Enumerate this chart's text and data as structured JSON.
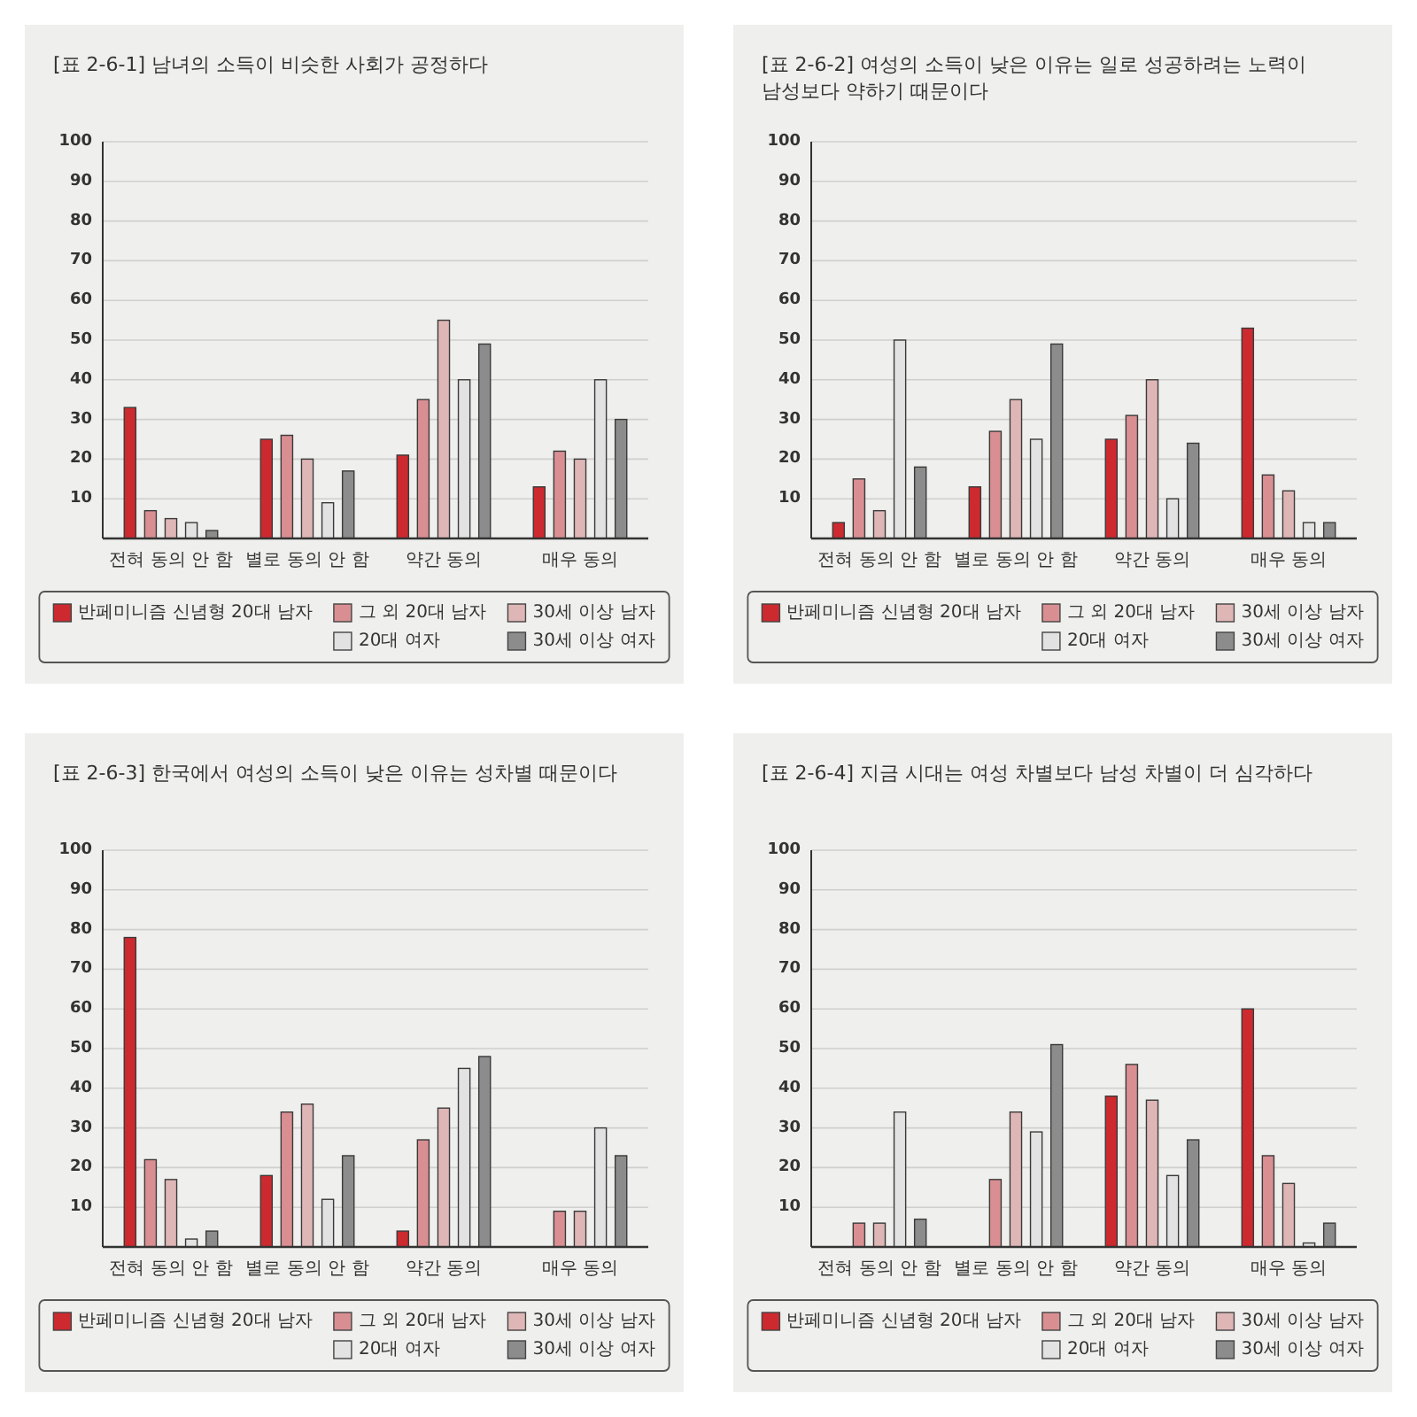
{
  "chart_data": [
    {
      "type": "bar",
      "title": "[표 2-6-1] 남녀의 소득이 비슷한 사회가 공정하다",
      "categories": [
        "전혀 동의 안 함",
        "별로 동의 안 함",
        "약간 동의",
        "매우 동의"
      ],
      "series": [
        {
          "name": "반페미니즘 신념형 20대 남자",
          "color": "#cc2a2f",
          "values": [
            33,
            25,
            21,
            13
          ]
        },
        {
          "name": "그 외 20대 남자",
          "color": "#d98f92",
          "values": [
            7,
            26,
            35,
            22
          ]
        },
        {
          "name": "30세 이상 남자",
          "color": "#dfb6b6",
          "values": [
            5,
            20,
            55,
            20
          ]
        },
        {
          "name": "20대 여자",
          "color": "#e2e2e2",
          "values": [
            4,
            9,
            40,
            40
          ]
        },
        {
          "name": "30세 이상 여자",
          "color": "#8c8c8c",
          "values": [
            2,
            17,
            49,
            30
          ]
        }
      ],
      "ylim": [
        0,
        100
      ],
      "yticks": [
        10,
        20,
        30,
        40,
        50,
        60,
        70,
        80,
        90,
        100
      ],
      "grid": "y",
      "legend": "bottom"
    },
    {
      "type": "bar",
      "title": "[표 2-6-2] 여성의 소득이 낮은 이유는 일로 성공하려는 노력이 남성보다 약하기 때문이다",
      "categories": [
        "전혀 동의 안 함",
        "별로 동의 안 함",
        "약간 동의",
        "매우 동의"
      ],
      "series": [
        {
          "name": "반페미니즘 신념형 20대 남자",
          "color": "#cc2a2f",
          "values": [
            4,
            13,
            25,
            53
          ]
        },
        {
          "name": "그 외 20대 남자",
          "color": "#d98f92",
          "values": [
            15,
            27,
            31,
            16
          ]
        },
        {
          "name": "30세 이상 남자",
          "color": "#dfb6b6",
          "values": [
            7,
            35,
            40,
            12
          ]
        },
        {
          "name": "20대 여자",
          "color": "#e2e2e2",
          "values": [
            50,
            25,
            10,
            4
          ]
        },
        {
          "name": "30세 이상 여자",
          "color": "#8c8c8c",
          "values": [
            18,
            49,
            24,
            4
          ]
        }
      ],
      "ylim": [
        0,
        100
      ],
      "yticks": [
        10,
        20,
        30,
        40,
        50,
        60,
        70,
        80,
        90,
        100
      ],
      "grid": "y",
      "legend": "bottom"
    },
    {
      "type": "bar",
      "title": "[표 2-6-3] 한국에서 여성의 소득이 낮은 이유는 성차별 때문이다",
      "categories": [
        "전혀 동의 안 함",
        "별로 동의 안 함",
        "약간 동의",
        "매우 동의"
      ],
      "series": [
        {
          "name": "반페미니즘 신념형 20대 남자",
          "color": "#cc2a2f",
          "values": [
            78,
            18,
            4,
            null
          ]
        },
        {
          "name": "그 외 20대 남자",
          "color": "#d98f92",
          "values": [
            22,
            34,
            27,
            9
          ]
        },
        {
          "name": "30세 이상 남자",
          "color": "#dfb6b6",
          "values": [
            17,
            36,
            35,
            9
          ]
        },
        {
          "name": "20대 여자",
          "color": "#e2e2e2",
          "values": [
            2,
            12,
            45,
            30
          ]
        },
        {
          "name": "30세 이상 여자",
          "color": "#8c8c8c",
          "values": [
            4,
            23,
            48,
            23
          ]
        }
      ],
      "ylim": [
        0,
        100
      ],
      "yticks": [
        10,
        20,
        30,
        40,
        50,
        60,
        70,
        80,
        90,
        100
      ],
      "grid": "y",
      "legend": "bottom"
    },
    {
      "type": "bar",
      "title": "[표 2-6-4] 지금 시대는 여성 차별보다 남성 차별이 더 심각하다",
      "categories": [
        "전혀 동의 안 함",
        "별로 동의 안 함",
        "약간 동의",
        "매우 동의"
      ],
      "series": [
        {
          "name": "반페미니즘 신념형 20대 남자",
          "color": "#cc2a2f",
          "values": [
            null,
            null,
            38,
            60
          ]
        },
        {
          "name": "그 외 20대 남자",
          "color": "#d98f92",
          "values": [
            6,
            17,
            46,
            23
          ]
        },
        {
          "name": "30세 이상 남자",
          "color": "#dfb6b6",
          "values": [
            6,
            34,
            37,
            16
          ]
        },
        {
          "name": "20대 여자",
          "color": "#e2e2e2",
          "values": [
            34,
            29,
            18,
            1
          ]
        },
        {
          "name": "30세 이상 여자",
          "color": "#8c8c8c",
          "values": [
            7,
            51,
            27,
            6
          ]
        }
      ],
      "ylim": [
        0,
        100
      ],
      "yticks": [
        10,
        20,
        30,
        40,
        50,
        60,
        70,
        80,
        90,
        100
      ],
      "grid": "y",
      "legend": "bottom"
    }
  ]
}
